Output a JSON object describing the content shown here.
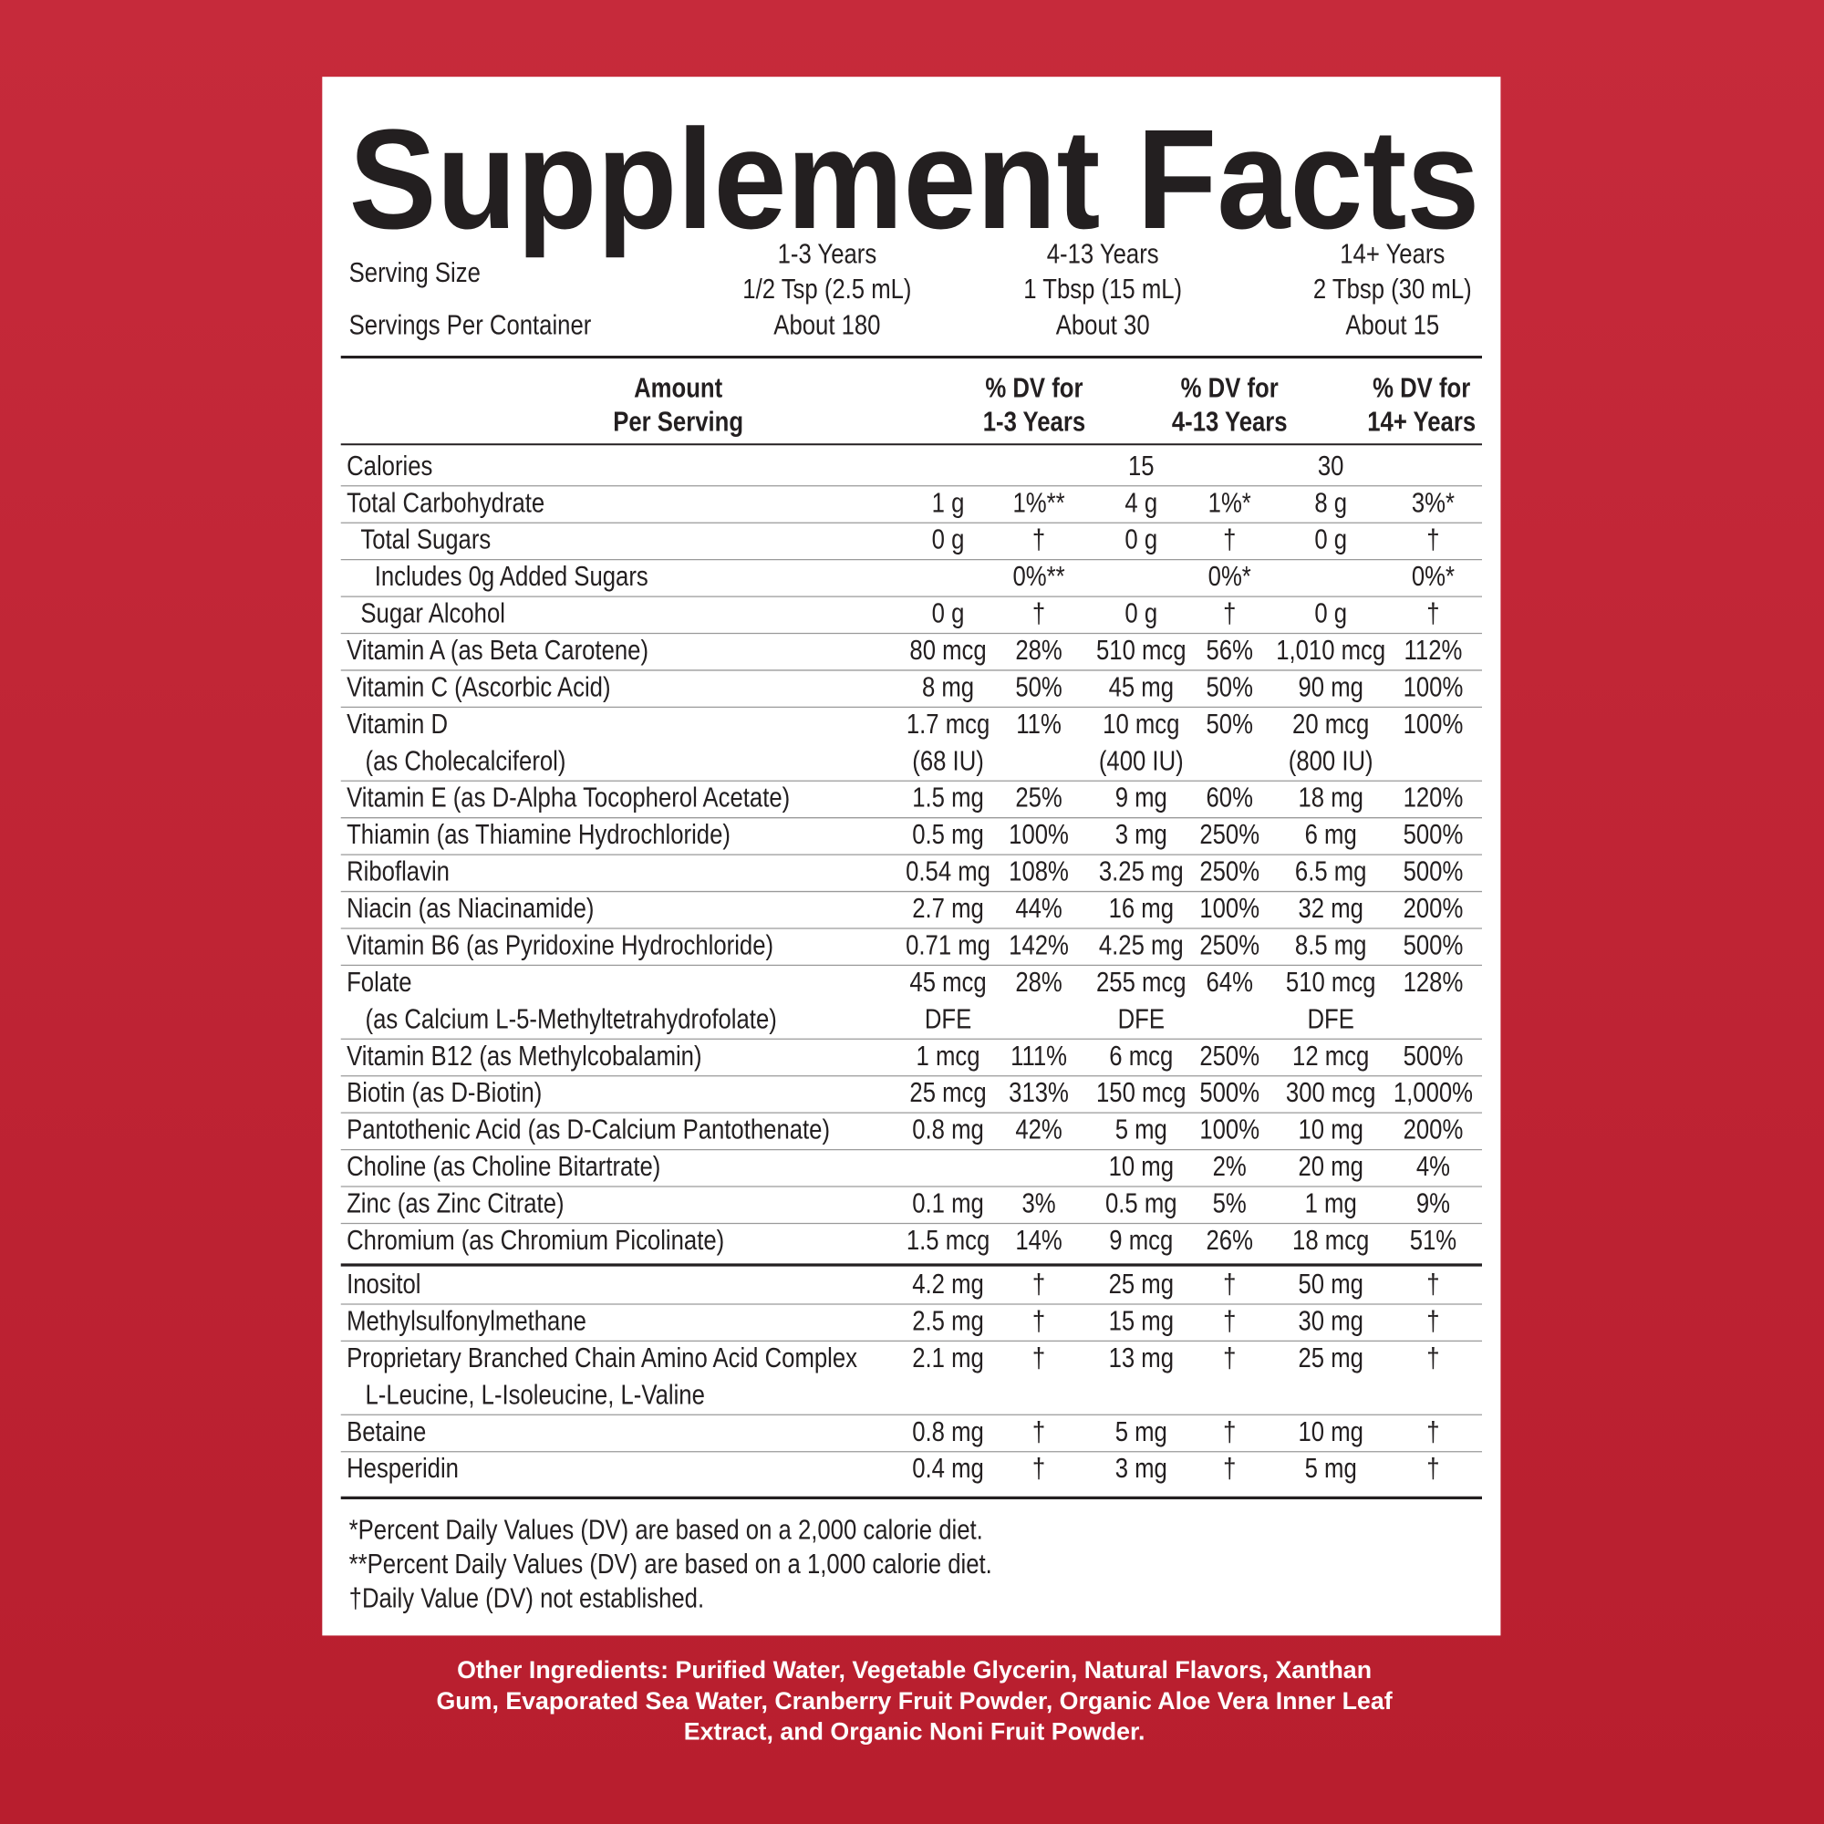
{
  "title": "Supplement Facts",
  "serving": {
    "size_label": "Serving Size",
    "per_container_label": "Servings Per Container",
    "columns": [
      {
        "age": "1-3 Years",
        "size": "1/2 Tsp (2.5 mL)",
        "servings": "About 180"
      },
      {
        "age": "4-13 Years",
        "size": "1 Tbsp (15 mL)",
        "servings": "About 30"
      },
      {
        "age": "14+ Years",
        "size": "2 Tbsp (30 mL)",
        "servings": "About 15"
      }
    ]
  },
  "header": {
    "amount": [
      "Amount",
      "Per Serving"
    ],
    "dv": [
      [
        "% DV for",
        "1-3 Years"
      ],
      [
        "% DV for",
        "4-13 Years"
      ],
      [
        "% DV for",
        "14+ Years"
      ]
    ]
  },
  "sections": [
    {
      "rows": [
        {
          "label": [
            "Calories"
          ],
          "cells": [
            null,
            null,
            "15",
            null,
            "30",
            null
          ]
        },
        {
          "label": [
            "Total Carbohydrate"
          ],
          "cells": [
            "1 g",
            "1%**",
            "4 g",
            "1%*",
            "8 g",
            "3%*"
          ]
        },
        {
          "label": [
            "Total Sugars"
          ],
          "level": 1,
          "cells": [
            "0 g",
            "†",
            "0 g",
            "†",
            "0 g",
            "†"
          ]
        },
        {
          "label": [
            "Includes 0g Added Sugars"
          ],
          "level": 2,
          "cells": [
            null,
            "0%**",
            null,
            "0%*",
            null,
            "0%*"
          ]
        },
        {
          "label": [
            "Sugar Alcohol"
          ],
          "level": 1,
          "cells": [
            "0 g",
            "†",
            "0 g",
            "†",
            "0 g",
            "†"
          ]
        },
        {
          "label": [
            "Vitamin A (as Beta Carotene)"
          ],
          "cells": [
            "80 mcg",
            "28%",
            "510 mcg",
            "56%",
            "1,010 mcg",
            "112%"
          ]
        },
        {
          "label": [
            "Vitamin C (Ascorbic Acid)"
          ],
          "cells": [
            "8 mg",
            "50%",
            "45 mg",
            "50%",
            "90 mg",
            "100%"
          ]
        },
        {
          "label": [
            "Vitamin D",
            "(as Cholecalciferol)"
          ],
          "cells": [
            [
              "1.7 mcg",
              "(68 IU)"
            ],
            "11%",
            [
              "10 mcg",
              "(400 IU)"
            ],
            "50%",
            [
              "20 mcg",
              "(800 IU)"
            ],
            "100%"
          ]
        },
        {
          "label": [
            "Vitamin E (as D-Alpha Tocopherol Acetate)"
          ],
          "cells": [
            "1.5 mg",
            "25%",
            "9 mg",
            "60%",
            "18 mg",
            "120%"
          ]
        },
        {
          "label": [
            "Thiamin (as Thiamine Hydrochloride)"
          ],
          "cells": [
            "0.5 mg",
            "100%",
            "3 mg",
            "250%",
            "6 mg",
            "500%"
          ]
        },
        {
          "label": [
            "Riboflavin"
          ],
          "cells": [
            "0.54 mg",
            "108%",
            "3.25 mg",
            "250%",
            "6.5 mg",
            "500%"
          ]
        },
        {
          "label": [
            "Niacin (as Niacinamide)"
          ],
          "cells": [
            "2.7 mg",
            "44%",
            "16 mg",
            "100%",
            "32 mg",
            "200%"
          ]
        },
        {
          "label": [
            "Vitamin B6 (as Pyridoxine Hydrochloride)"
          ],
          "cells": [
            "0.71 mg",
            "142%",
            "4.25 mg",
            "250%",
            "8.5 mg",
            "500%"
          ]
        },
        {
          "label": [
            "Folate",
            "(as Calcium L-5-Methyltetrahydrofolate)"
          ],
          "cells": [
            [
              "45 mcg",
              "DFE"
            ],
            "28%",
            [
              "255 mcg",
              "DFE"
            ],
            "64%",
            [
              "510 mcg",
              "DFE"
            ],
            "128%"
          ]
        },
        {
          "label": [
            "Vitamin B12 (as Methylcobalamin)"
          ],
          "cells": [
            "1 mcg",
            "111%",
            "6 mcg",
            "250%",
            "12 mcg",
            "500%"
          ]
        },
        {
          "label": [
            "Biotin (as D-Biotin)"
          ],
          "cells": [
            "25 mcg",
            "313%",
            "150 mcg",
            "500%",
            "300 mcg",
            "1,000%"
          ]
        },
        {
          "label": [
            "Pantothenic Acid (as D-Calcium Pantothenate)"
          ],
          "cells": [
            "0.8 mg",
            "42%",
            "5 mg",
            "100%",
            "10 mg",
            "200%"
          ]
        },
        {
          "label": [
            "Choline (as Choline Bitartrate)"
          ],
          "cells": [
            null,
            null,
            "10 mg",
            "2%",
            "20 mg",
            "4%"
          ]
        },
        {
          "label": [
            "Zinc (as Zinc Citrate)"
          ],
          "cells": [
            "0.1 mg",
            "3%",
            "0.5 mg",
            "5%",
            "1 mg",
            "9%"
          ]
        },
        {
          "label": [
            "Chromium (as Chromium Picolinate)"
          ],
          "cells": [
            "1.5 mcg",
            "14%",
            "9 mcg",
            "26%",
            "18 mcg",
            "51%"
          ]
        }
      ]
    },
    {
      "rows": [
        {
          "label": [
            "Inositol"
          ],
          "cells": [
            "4.2 mg",
            "†",
            "25 mg",
            "†",
            "50 mg",
            "†"
          ]
        },
        {
          "label": [
            "Methylsulfonylmethane"
          ],
          "cells": [
            "2.5 mg",
            "†",
            "15 mg",
            "†",
            "30 mg",
            "†"
          ]
        },
        {
          "label": [
            "Proprietary Branched Chain Amino Acid Complex",
            "L-Leucine, L-Isoleucine, L-Valine"
          ],
          "cells": [
            "2.1 mg",
            "†",
            "13 mg",
            "†",
            "25 mg",
            "†"
          ]
        },
        {
          "label": [
            "Betaine"
          ],
          "cells": [
            "0.8 mg",
            "†",
            "5 mg",
            "†",
            "10 mg",
            "†"
          ]
        },
        {
          "label": [
            "Hesperidin"
          ],
          "cells": [
            "0.4 mg",
            "†",
            "3 mg",
            "†",
            "5 mg",
            "†"
          ]
        }
      ]
    }
  ],
  "footnotes": [
    "*Percent Daily Values (DV) are based on a 2,000 calorie diet.",
    "**Percent Daily Values (DV) are based on a 1,000 calorie diet.",
    "†Daily Value (DV) not established."
  ],
  "other_ingredients": [
    "Other Ingredients: Purified Water, Vegetable Glycerin, Natural Flavors, Xanthan",
    "Gum, Evaporated Sea Water, Cranberry Fruit Powder, Organic Aloe Vera Inner Leaf",
    "Extract, and Organic Noni Fruit Powder."
  ]
}
